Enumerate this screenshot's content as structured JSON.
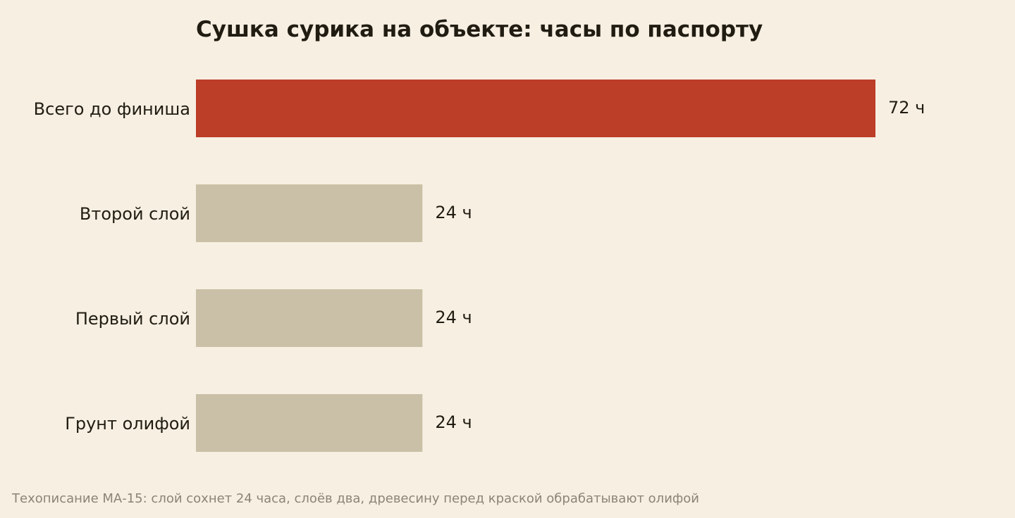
{
  "chart_data": {
    "type": "bar",
    "orientation": "horizontal",
    "title": "Сушка сурика на объекте: часы по паспорту",
    "categories": [
      "Всего до финиша",
      "Второй слой",
      "Первый слой",
      "Грунт олифой"
    ],
    "values": [
      72,
      24,
      24,
      24
    ],
    "value_labels": [
      "72 ч",
      "24 ч",
      "24 ч",
      "24 ч"
    ],
    "xlim": [
      0,
      72
    ],
    "unit": "ч",
    "grid": false,
    "legend": "none",
    "colors": {
      "highlight": "#bc3d28",
      "default": "#c9c0a7",
      "background": "#f6efe2",
      "text": "#211c12",
      "caption": "#8c8476"
    },
    "highlight_index": 0
  },
  "caption": "Техописание МА-15: слой сохнет 24 часа, слоёв два, древесину перед краской обрабатывают олифой"
}
